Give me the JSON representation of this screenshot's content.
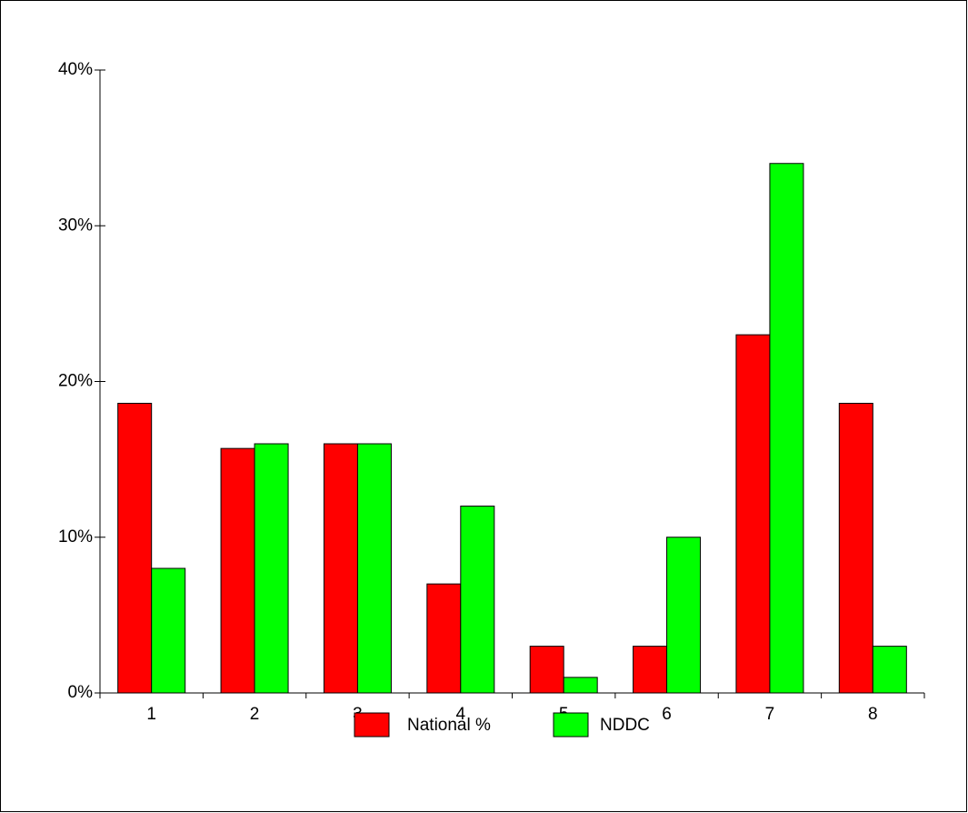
{
  "chart_data": {
    "type": "bar",
    "categories": [
      "1",
      "2",
      "3",
      "4",
      "5",
      "6",
      "7",
      "8"
    ],
    "series": [
      {
        "name": "National %",
        "color": "#ff0000",
        "values": [
          18.6,
          15.7,
          16,
          7,
          3,
          3,
          23,
          18.6
        ]
      },
      {
        "name": "NDDC",
        "color": "#00ff00",
        "values": [
          8,
          16,
          16,
          12,
          1,
          10,
          34,
          3
        ]
      }
    ],
    "ylim": [
      0,
      40
    ],
    "yticks": [
      {
        "value": 0,
        "label": "0%"
      },
      {
        "value": 10,
        "label": "10%"
      },
      {
        "value": 20,
        "label": "20%"
      },
      {
        "value": 30,
        "label": "30%"
      },
      {
        "value": 40,
        "label": "40%"
      }
    ],
    "legend": "bottom"
  }
}
